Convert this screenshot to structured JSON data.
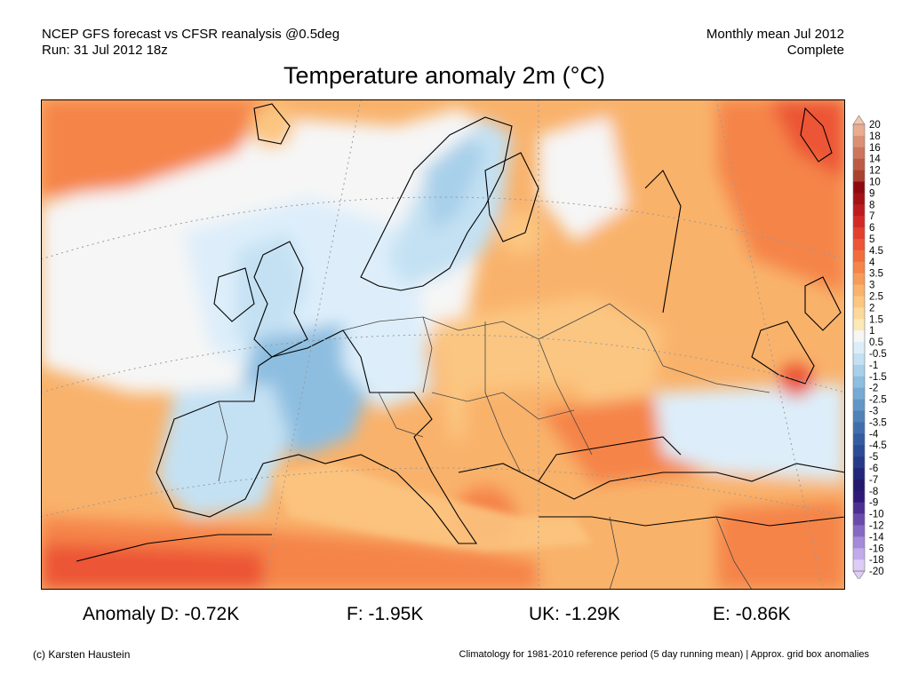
{
  "header": {
    "left_line1": "NCEP GFS forecast vs CFSR reanalysis @0.5deg",
    "left_line2": "Run: 31 Jul 2012 18z",
    "right_line1": "Monthly mean Jul 2012",
    "right_line2": "Complete"
  },
  "title": "Temperature anomaly 2m (°C)",
  "legend": {
    "levels": [
      "20",
      "18",
      "16",
      "14",
      "12",
      "10",
      "9",
      "8",
      "7",
      "6",
      "5",
      "4.5",
      "4",
      "3.5",
      "3",
      "2.5",
      "2",
      "1.5",
      "1",
      "0.5",
      "-0.5",
      "-1",
      "-1.5",
      "-2",
      "-2.5",
      "-3",
      "-3.5",
      "-4",
      "-4.5",
      "-5",
      "-6",
      "-7",
      "-8",
      "-9",
      "-10",
      "-12",
      "-14",
      "-16",
      "-18",
      "-20"
    ],
    "colors": [
      "#f3c6ae",
      "#e9ac91",
      "#db9076",
      "#cc765d",
      "#bb5b44",
      "#a9422e",
      "#8e0a10",
      "#a31217",
      "#bd1c1f",
      "#d42a27",
      "#e23f2d",
      "#ec5535",
      "#f26d3d",
      "#f58449",
      "#f79b58",
      "#f9b26b",
      "#fbc681",
      "#fcd99a",
      "#fde9b8",
      "#f6f6f6",
      "#ddeefa",
      "#c4e1f3",
      "#a8d0ea",
      "#8dbee0",
      "#75aad4",
      "#6196c7",
      "#4f82b9",
      "#416ead",
      "#355ba1",
      "#2c4b96",
      "#26398a",
      "#23277c",
      "#24196e",
      "#301a79",
      "#4d2e93",
      "#6a4aac",
      "#8769c4",
      "#a48ad8",
      "#c1abea",
      "#dcccf6"
    ]
  },
  "map": {
    "land_colors": {
      "warm_low": "#fbc681",
      "warm_mid": "#f9b26b",
      "warm_high": "#f58449",
      "hot": "#ec5535",
      "neutral": "#f6f6f6",
      "cool": "#c4e1f3",
      "cooler": "#8dbee0"
    }
  },
  "anomalies": {
    "d": "Anomaly D: -0.72K",
    "f": "F: -1.95K",
    "uk": "UK: -1.29K",
    "e": "E: -0.86K"
  },
  "footer": {
    "left": "(c) Karsten Haustein",
    "right": "Climatology for 1981-2010 reference period (5 day running mean) | Approx. grid box anomalies"
  }
}
